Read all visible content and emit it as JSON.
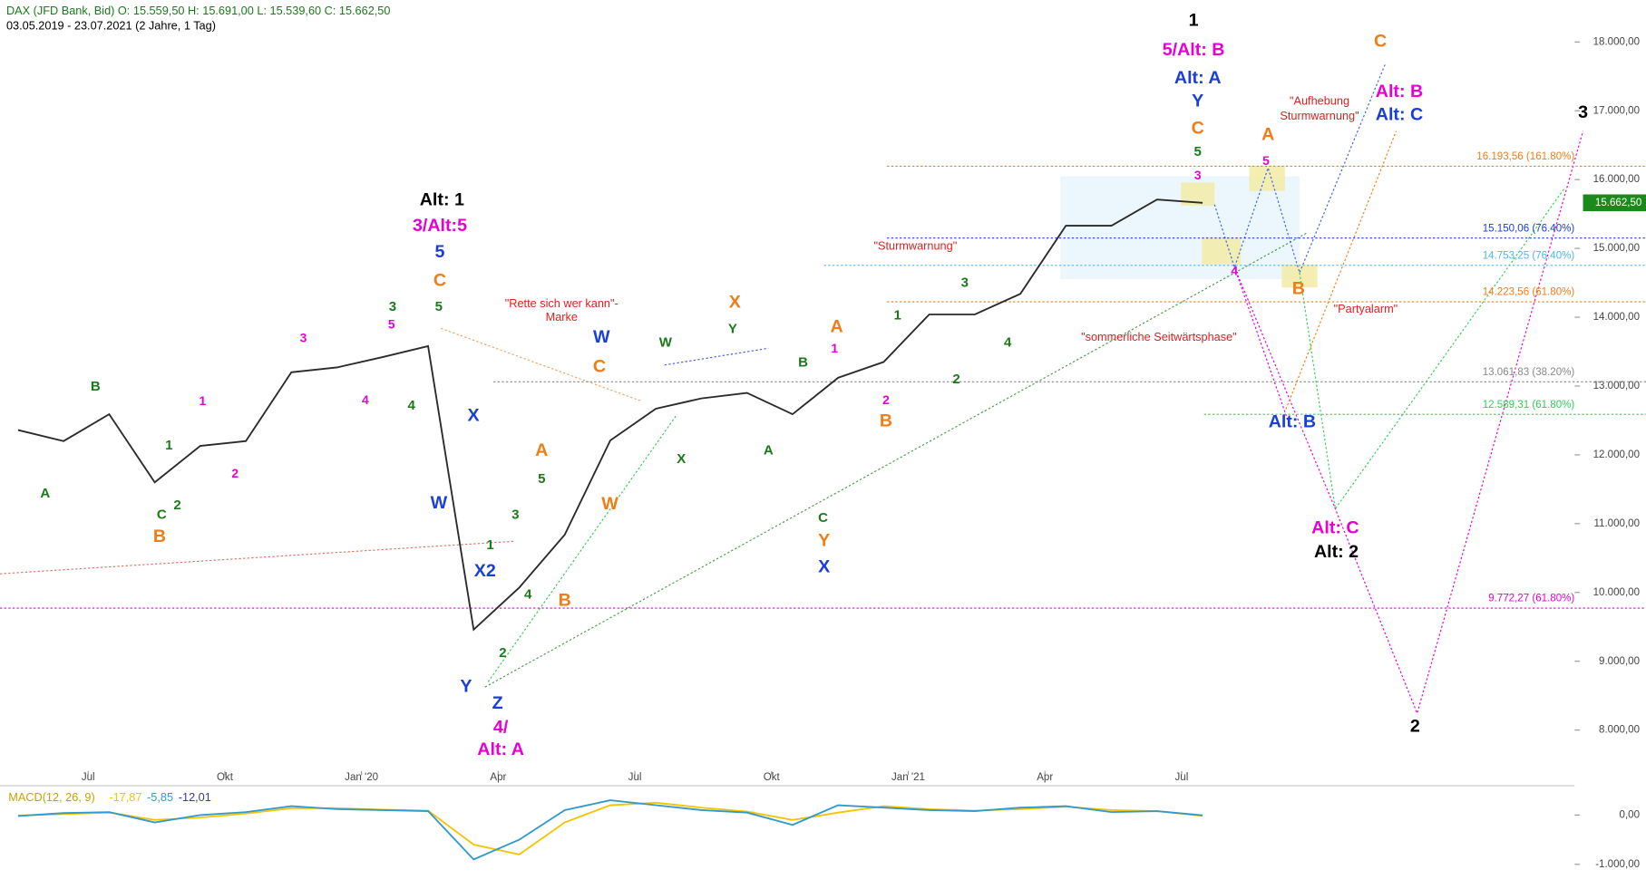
{
  "chart_data": {
    "type": "line",
    "header": "DAX (JFD Bank, Bid)  O: 15.559,50  H: 15.691,00  L: 15.539,60  C: 15.662,50",
    "subheader": "03.05.2019 - 23.07.2021  (2 Jahre, 1 Tag)",
    "x": [
      "2019-05",
      "2019-06",
      "2019-07",
      "2019-08",
      "2019-09",
      "2019-10",
      "2019-11",
      "2019-12",
      "2020-01",
      "2020-02",
      "2020-03",
      "2020-04",
      "2020-05",
      "2020-06",
      "2020-07",
      "2020-08",
      "2020-09",
      "2020-10",
      "2020-11",
      "2020-12",
      "2021-01",
      "2021-02",
      "2021-03",
      "2021-04",
      "2021-05",
      "2021-06",
      "2021-07"
    ],
    "series": [
      {
        "name": "DAX",
        "color": "#2a2a2a",
        "values": [
          12360,
          12200,
          12590,
          11600,
          12130,
          12200,
          13200,
          13270,
          13420,
          13580,
          9460,
          10070,
          10840,
          12210,
          12670,
          12820,
          12900,
          12590,
          13120,
          13350,
          14040,
          14040,
          14340,
          15330,
          15330,
          15710,
          15662.5
        ]
      }
    ],
    "xtick_labels": [
      "Jul",
      "Okt",
      "Jan '20",
      "Apr",
      "Jul",
      "Okt",
      "Jan '21",
      "Apr",
      "Jul"
    ],
    "ylim": [
      8000,
      18000
    ],
    "yticks": [
      {
        "value": 8000,
        "label": "8.000,00"
      },
      {
        "value": 9000,
        "label": "9.000,00"
      },
      {
        "value": 10000,
        "label": "10.000,00"
      },
      {
        "value": 11000,
        "label": "11.000,00"
      },
      {
        "value": 12000,
        "label": "12.000,00"
      },
      {
        "value": 13000,
        "label": "13.000,00"
      },
      {
        "value": 14000,
        "label": "14.000,00"
      },
      {
        "value": 15000,
        "label": "15.000,00"
      },
      {
        "value": 16000,
        "label": "16.000,00"
      },
      {
        "value": 17000,
        "label": "17.000,00"
      },
      {
        "value": 18000,
        "label": "18.000,00"
      }
    ],
    "last_price": {
      "value": 15662.5,
      "label": "15.662,50",
      "color": "#1a8a1a"
    },
    "levels": [
      {
        "value": 16193.56,
        "label": "16.193,56 (161.80%)",
        "color": "#f07d16"
      },
      {
        "value": 15150.06,
        "label": "15.150,06 (76.40%)",
        "color": "#1a3fd6"
      },
      {
        "value": 14753.25,
        "label": "14.753,25 (76.40%)",
        "color": "#4fb6e8"
      },
      {
        "value": 14223.56,
        "label": "14.223,56 (61.80%)",
        "color": "#f07d16"
      },
      {
        "value": 13061.83,
        "label": "13.061,83 (38.20%)",
        "color": "#888888"
      },
      {
        "value": 12589.31,
        "label": "12.589,31 (61.80%)",
        "color": "#33cc55"
      },
      {
        "value": 9772.27,
        "label": "9.772,27 (61.80%)",
        "color": "#e600d6"
      }
    ],
    "annotations": [
      {
        "text": "1",
        "color": "#000000"
      },
      {
        "text": "5/Alt: B",
        "color": "#e600d6"
      },
      {
        "text": "Alt: A",
        "color": "#1a3fd6"
      },
      {
        "text": "Y",
        "color": "#1a3fd6"
      },
      {
        "text": "C",
        "color": "#f07d16"
      },
      {
        "text": "5",
        "color": "#1a7a1a"
      },
      {
        "text": "3",
        "color": "#e600d6"
      },
      {
        "text": "Alt: 1",
        "color": "#000000"
      },
      {
        "text": "3/Alt:5",
        "color": "#e600d6"
      },
      {
        "text": "5",
        "color": "#1a3fd6"
      },
      {
        "text": "C",
        "color": "#f07d16"
      },
      {
        "text": "5",
        "color": "#1a7a1a"
      },
      {
        "text": "3",
        "color": "#1a7a1a"
      },
      {
        "text": "5",
        "color": "#e600d6"
      },
      {
        "text": "3",
        "color": "#e600d6"
      },
      {
        "text": "4",
        "color": "#e600d6"
      },
      {
        "text": "4",
        "color": "#1a7a1a"
      },
      {
        "text": "X",
        "color": "#1a3fd6"
      },
      {
        "text": "W",
        "color": "#1a3fd6"
      },
      {
        "text": "X2",
        "color": "#1a3fd6"
      },
      {
        "text": "Y",
        "color": "#1a3fd6"
      },
      {
        "text": "Z",
        "color": "#1a3fd6"
      },
      {
        "text": "4/",
        "color": "#e600d6"
      },
      {
        "text": "Alt: A",
        "color": "#e600d6"
      },
      {
        "text": "1",
        "color": "#1a7a1a"
      },
      {
        "text": "2",
        "color": "#1a7a1a"
      },
      {
        "text": "3",
        "color": "#1a7a1a"
      },
      {
        "text": "4",
        "color": "#1a7a1a"
      },
      {
        "text": "5",
        "color": "#1a7a1a"
      },
      {
        "text": "A",
        "color": "#f07d16"
      },
      {
        "text": "B",
        "color": "#f07d16"
      },
      {
        "text": "C",
        "color": "#f07d16"
      },
      {
        "text": "W",
        "color": "#1a3fd6"
      },
      {
        "text": "W",
        "color": "#f07d16"
      },
      {
        "text": "W",
        "color": "#1a7a1a"
      },
      {
        "text": "X",
        "color": "#1a7a1a"
      },
      {
        "text": "X",
        "color": "#f07d16"
      },
      {
        "text": "Y",
        "color": "#1a7a1a"
      },
      {
        "text": "B",
        "color": "#1a7a1a"
      },
      {
        "text": "A",
        "color": "#1a7a1a"
      },
      {
        "text": "C",
        "color": "#1a7a1a"
      },
      {
        "text": "Y",
        "color": "#f07d16"
      },
      {
        "text": "X",
        "color": "#1a3fd6"
      },
      {
        "text": "A",
        "color": "#f07d16"
      },
      {
        "text": "1",
        "color": "#e600d6"
      },
      {
        "text": "2",
        "color": "#e600d6"
      },
      {
        "text": "B",
        "color": "#f07d16"
      },
      {
        "text": "1",
        "color": "#1a7a1a"
      },
      {
        "text": "2",
        "color": "#1a7a1a"
      },
      {
        "text": "3",
        "color": "#1a7a1a"
      },
      {
        "text": "4",
        "color": "#1a7a1a"
      },
      {
        "text": "A",
        "color": "#1a7a1a"
      },
      {
        "text": "B",
        "color": "#1a7a1a"
      },
      {
        "text": "1",
        "color": "#1a7a1a"
      },
      {
        "text": "C",
        "color": "#1a7a1a"
      },
      {
        "text": "2",
        "color": "#1a7a1a"
      },
      {
        "text": "B",
        "color": "#f07d16"
      },
      {
        "text": "1",
        "color": "#e600d6"
      },
      {
        "text": "2",
        "color": "#e600d6"
      },
      {
        "text": "A",
        "color": "#f07d16"
      },
      {
        "text": "5",
        "color": "#e600d6"
      },
      {
        "text": "4",
        "color": "#e600d6"
      },
      {
        "text": "B",
        "color": "#f07d16"
      },
      {
        "text": "C",
        "color": "#f07d16"
      },
      {
        "text": "Alt: B",
        "color": "#e600d6"
      },
      {
        "text": "Alt: C",
        "color": "#1a3fd6"
      },
      {
        "text": "3",
        "color": "#000000"
      },
      {
        "text": "Alt: B",
        "color": "#1a3fd6"
      },
      {
        "text": "Alt: C",
        "color": "#e600d6"
      },
      {
        "text": "Alt: 2",
        "color": "#000000"
      },
      {
        "text": "2",
        "color": "#000000"
      },
      {
        "text": "\"Rette sich wer kann\"-",
        "color": "#e02020"
      },
      {
        "text": "Marke",
        "color": "#e02020"
      },
      {
        "text": "\"Sturmwarnung\"",
        "color": "#e02020"
      },
      {
        "text": "\"sommerliche Seitwärtsphase\"",
        "color": "#e02020"
      },
      {
        "text": "\"Aufhebung",
        "color": "#e02020"
      },
      {
        "text": "Sturmwarnung\"",
        "color": "#e02020"
      },
      {
        "text": "\"Partyalarm\"",
        "color": "#e02020"
      }
    ],
    "macd": {
      "title": "MACD(12, 26, 9)",
      "legend_values": [
        "-17,87",
        "-5,85",
        "-12,01"
      ],
      "series": [
        {
          "name": "Signal",
          "color": "#f5c400",
          "values": [
            -10,
            20,
            50,
            -100,
            -50,
            30,
            140,
            140,
            110,
            90,
            -600,
            -800,
            -150,
            200,
            250,
            150,
            70,
            -100,
            50,
            180,
            120,
            90,
            120,
            170,
            100,
            80,
            -17.87
          ]
        },
        {
          "name": "MACD",
          "color": "#3399cc",
          "values": [
            -20,
            40,
            60,
            -150,
            0,
            60,
            180,
            120,
            100,
            80,
            -900,
            -500,
            100,
            300,
            200,
            100,
            50,
            -200,
            200,
            150,
            100,
            80,
            150,
            180,
            60,
            80,
            -5.85
          ]
        }
      ],
      "ylim": [
        -1500,
        500
      ],
      "yticks": [
        {
          "value": 0,
          "label": "0,00"
        },
        {
          "value": -1000,
          "label": "-1.000,00"
        }
      ]
    }
  }
}
